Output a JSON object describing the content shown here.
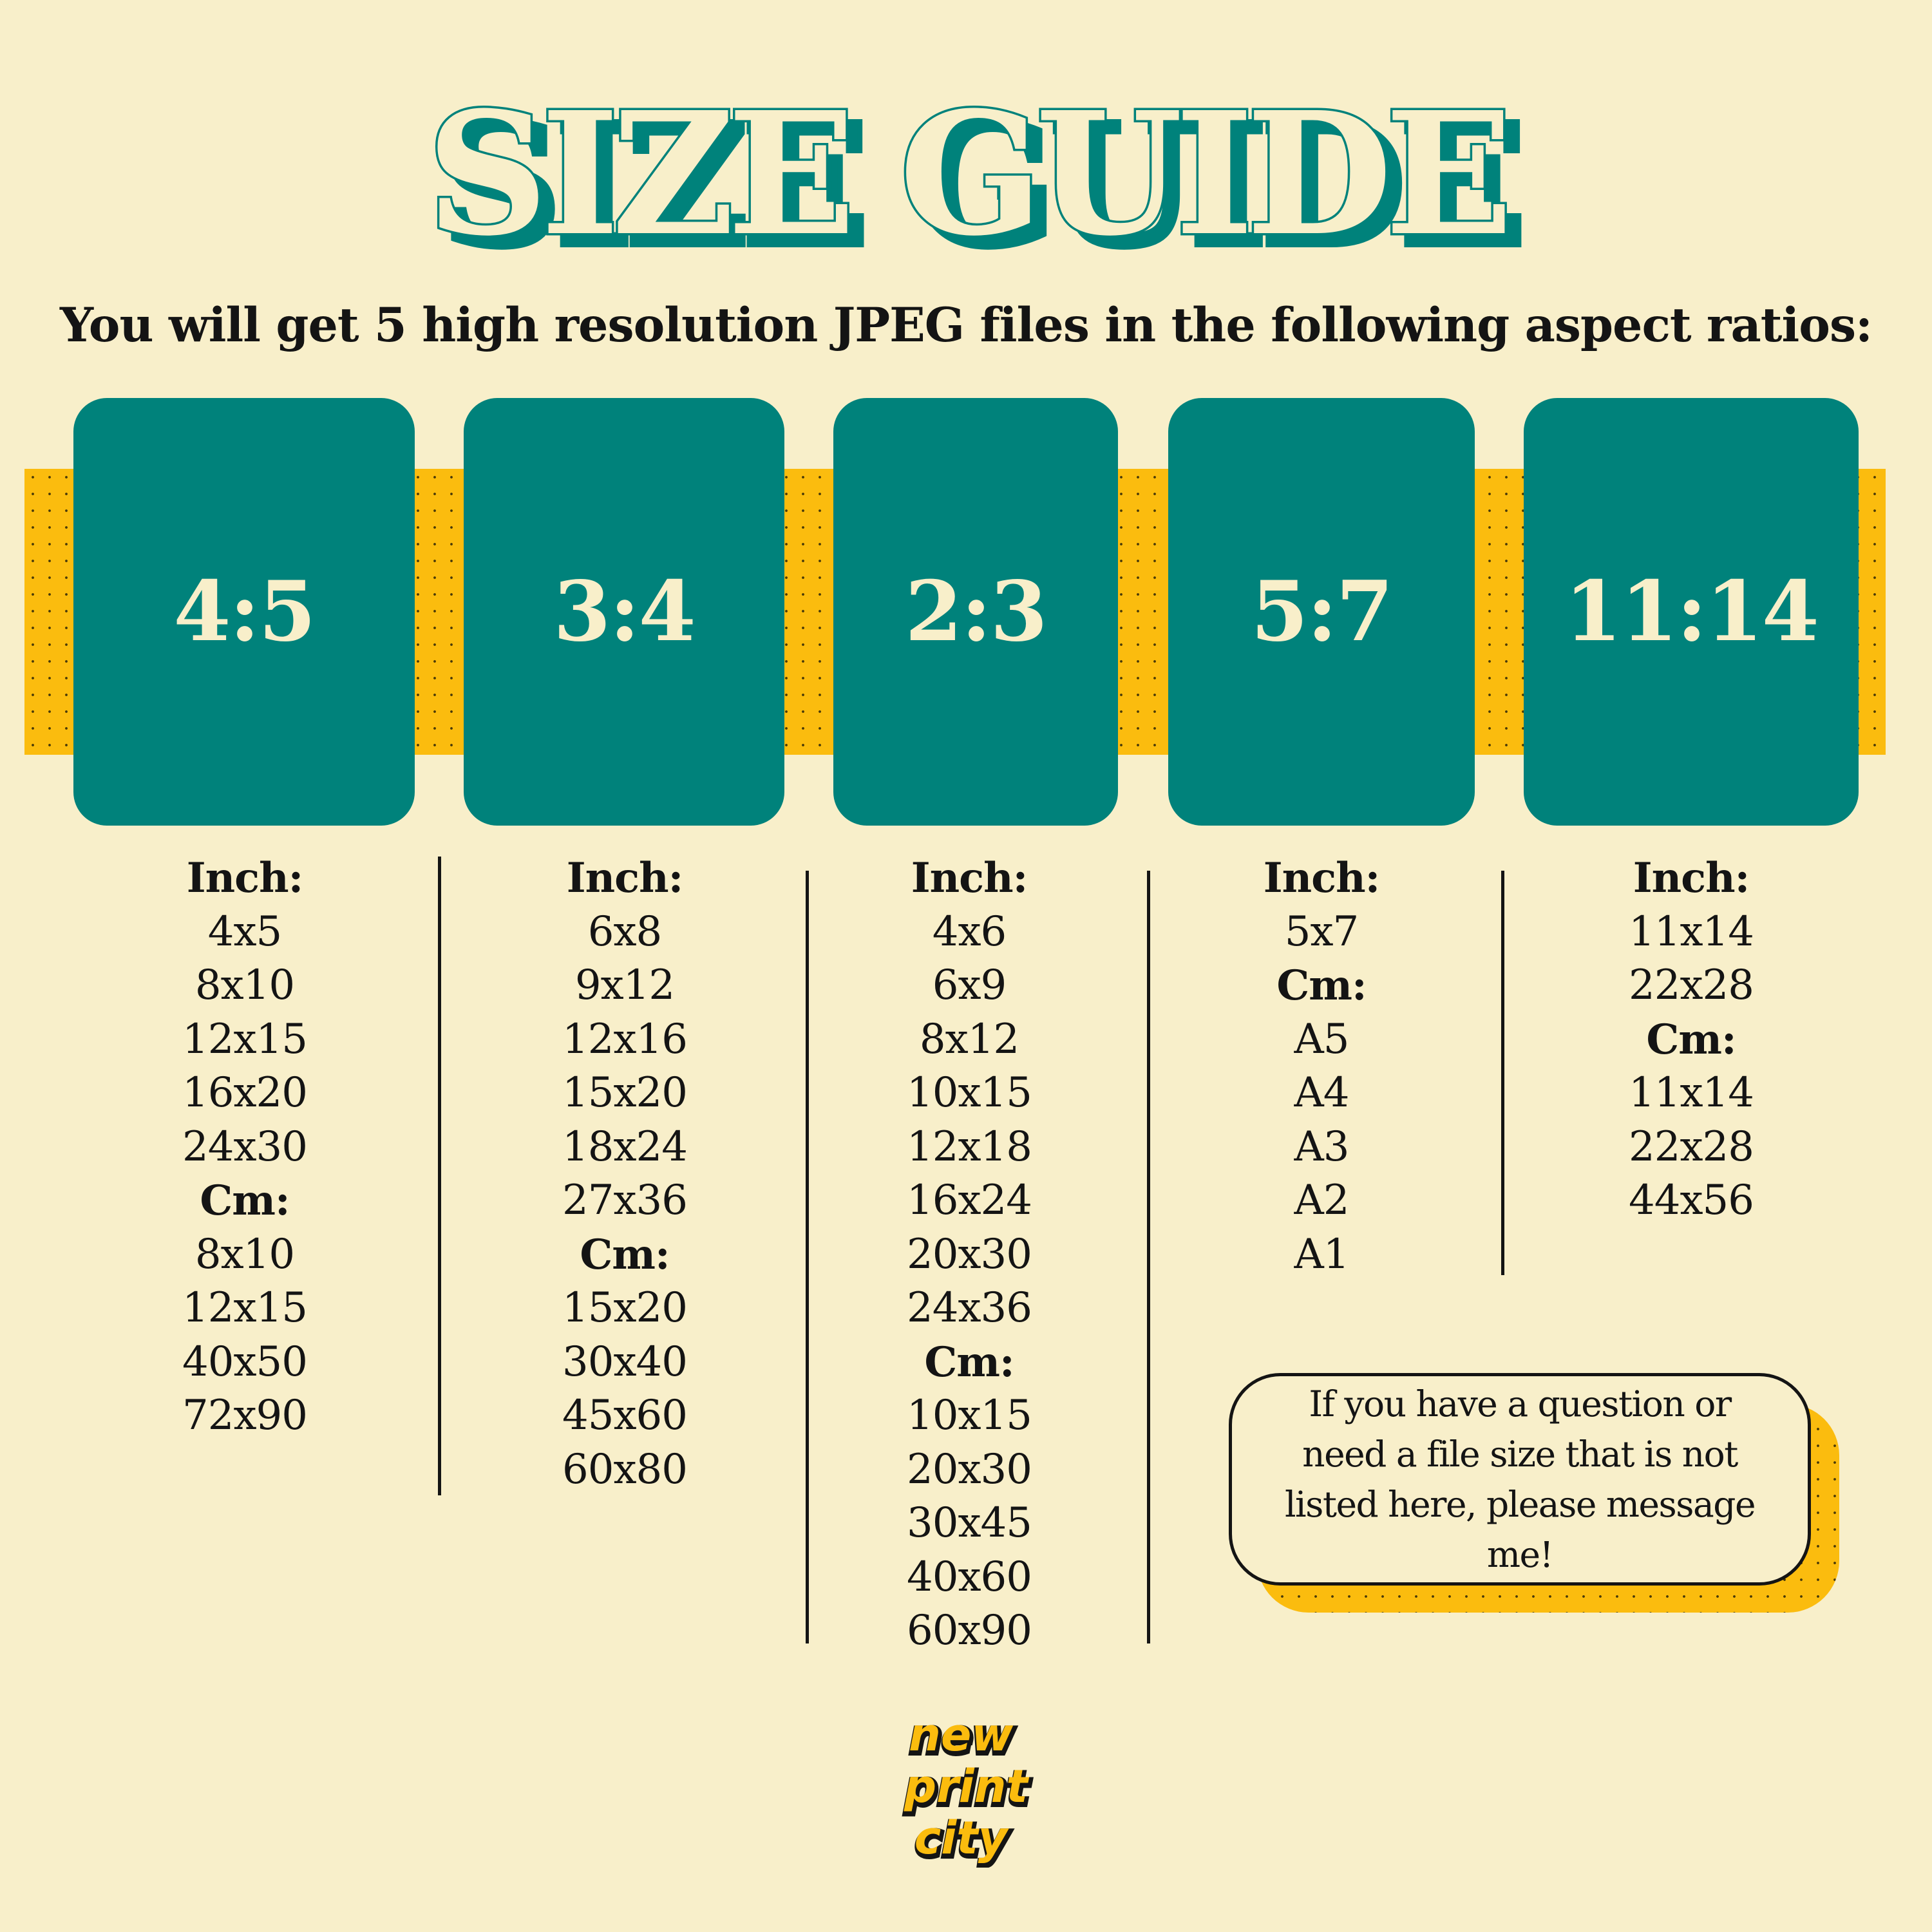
{
  "header": {
    "title": "SIZE GUIDE",
    "subtitle": "You will get 5 high resolution JPEG files in the following aspect ratios:"
  },
  "colors": {
    "background": "#f8efca",
    "teal": "#00827b",
    "yellow": "#fbbc0e",
    "text": "#141414"
  },
  "ratios": [
    "4:5",
    "3:4",
    "2:3",
    "5:7",
    "11:14"
  ],
  "columns": [
    {
      "rows": [
        "Inch:",
        "4x5",
        "8x10",
        "12x15",
        "16x20",
        "24x30",
        "Cm:",
        "8x10",
        "12x15",
        "40x50",
        "72x90"
      ]
    },
    {
      "rows": [
        "Inch:",
        "6x8",
        "9x12",
        "12x16",
        "15x20",
        "18x24",
        "27x36",
        "Cm:",
        "15x20",
        "30x40",
        "45x60",
        "60x80"
      ]
    },
    {
      "rows": [
        "Inch:",
        "4x6",
        "6x9",
        "8x12",
        "10x15",
        "12x18",
        "16x24",
        "20x30",
        "24x36",
        "Cm:",
        "10x15",
        "20x30",
        "30x45",
        "40x60",
        "60x90"
      ]
    },
    {
      "rows": [
        "Inch:",
        "5x7",
        "Cm:",
        "A5",
        "A4",
        "A3",
        "A2",
        "A1"
      ]
    },
    {
      "rows": [
        "Inch:",
        "11x14",
        "22x28",
        "Cm:",
        "11x14",
        "22x28",
        "44x56"
      ]
    }
  ],
  "note": {
    "text": "If you have a question or need a file size that is not listed here, please message me!"
  },
  "logo": {
    "lines": [
      "new",
      "print",
      "city"
    ]
  }
}
